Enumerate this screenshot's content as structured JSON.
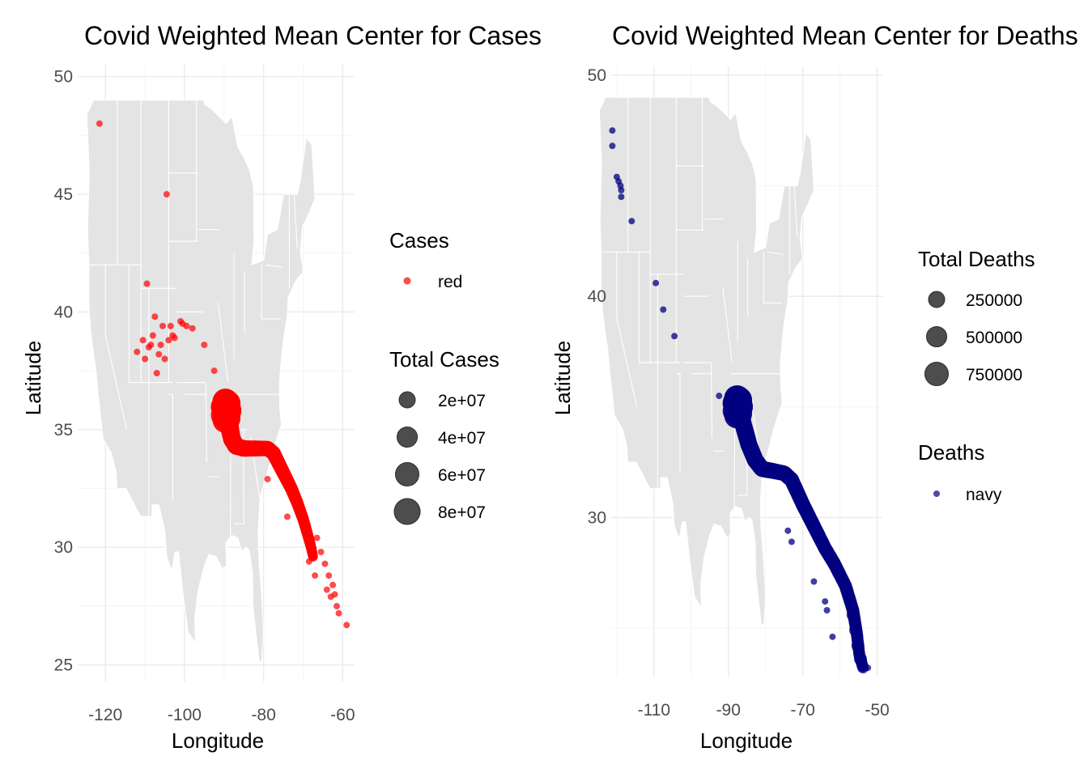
{
  "chart_data": [
    {
      "type": "scatter",
      "title": "Covid Weighted Mean Center for Cases",
      "xlabel": "Longitude",
      "ylabel": "Latitude",
      "xlim": [
        -127,
        -57
      ],
      "ylim": [
        24.3,
        50.5
      ],
      "xticks": [
        -120,
        -100,
        -80,
        -60
      ],
      "yticks": [
        25,
        30,
        35,
        40,
        45,
        50
      ],
      "xtick_labels": [
        "-120",
        "-100",
        "-80",
        "-60"
      ],
      "ytick_labels": [
        "25",
        "30",
        "35",
        "40",
        "45",
        "50"
      ],
      "grid": true,
      "basemap": "contiguous US states (light gray)",
      "point_color": "#ff0000",
      "legends": [
        {
          "title": "Cases",
          "entries": [
            {
              "label": "red",
              "color": "#ff0000"
            }
          ]
        },
        {
          "title": "Total Cases",
          "entries": [
            {
              "label": "2e+07",
              "value": 20000000
            },
            {
              "label": "4e+07",
              "value": 40000000
            },
            {
              "label": "6e+07",
              "value": 60000000
            },
            {
              "label": "8e+07",
              "value": 80000000
            }
          ]
        }
      ],
      "scattered_points": [
        [
          -121.5,
          48.0
        ],
        [
          -104.5,
          45.0
        ],
        [
          -109.5,
          41.2
        ],
        [
          -112.0,
          38.3
        ],
        [
          -110.5,
          38.8
        ],
        [
          -109.0,
          38.5
        ],
        [
          -108.0,
          39.0
        ],
        [
          -107.5,
          39.8
        ],
        [
          -106.5,
          38.2
        ],
        [
          -105.5,
          39.4
        ],
        [
          -104.0,
          38.8
        ],
        [
          -103.5,
          39.4
        ],
        [
          -101.0,
          39.6
        ],
        [
          -99.5,
          39.4
        ],
        [
          -100.5,
          39.5
        ],
        [
          -102.5,
          38.9
        ],
        [
          -110.0,
          38.0
        ],
        [
          -108.5,
          38.6
        ],
        [
          -107.0,
          37.4
        ],
        [
          -106.0,
          38.6
        ],
        [
          -105.0,
          38.0
        ],
        [
          -103.0,
          39.0
        ],
        [
          -98.0,
          39.3
        ],
        [
          -95.0,
          38.6
        ],
        [
          -92.5,
          37.5
        ],
        [
          -79.0,
          32.9
        ],
        [
          -74.0,
          31.3
        ],
        [
          -66.5,
          30.4
        ],
        [
          -65.5,
          29.8
        ],
        [
          -64.5,
          29.3
        ],
        [
          -63.5,
          28.8
        ],
        [
          -62.5,
          28.4
        ],
        [
          -62.0,
          28.0
        ],
        [
          -61.5,
          27.5
        ],
        [
          -61.0,
          27.2
        ],
        [
          -59.0,
          26.7
        ],
        [
          -68.5,
          29.4
        ],
        [
          -67.0,
          28.8
        ],
        [
          -64.0,
          28.2
        ],
        [
          -63.0,
          27.9
        ]
      ],
      "path": [
        [
          -90.0,
          36.0
        ],
        [
          -89.0,
          35.5
        ],
        [
          -88.5,
          35.0
        ],
        [
          -88.0,
          34.6
        ],
        [
          -87.0,
          34.3
        ],
        [
          -85.0,
          34.2
        ],
        [
          -82.0,
          34.2
        ],
        [
          -79.0,
          34.2
        ],
        [
          -77.5,
          34.0
        ],
        [
          -76.0,
          33.5
        ],
        [
          -74.5,
          33.0
        ],
        [
          -73.0,
          32.5
        ],
        [
          -71.5,
          31.9
        ],
        [
          -70.0,
          31.2
        ],
        [
          -68.8,
          30.5
        ],
        [
          -68.0,
          30.0
        ],
        [
          -67.5,
          29.6
        ]
      ],
      "cluster": [
        -89.5,
        35.8
      ]
    },
    {
      "type": "scatter",
      "title": "Covid Weighted Mean Center for Deaths",
      "xlabel": "Longitude",
      "ylabel": "Latitude",
      "xlim": [
        -121.5,
        -48.6
      ],
      "ylim": [
        22.8,
        50.4
      ],
      "xticks": [
        -110,
        -90,
        -70,
        -50
      ],
      "yticks": [
        30,
        40,
        50
      ],
      "xtick_labels": [
        "-110",
        "-90",
        "-70",
        "-50"
      ],
      "ytick_labels": [
        "30",
        "40",
        "50"
      ],
      "grid": true,
      "basemap": "contiguous US states (light gray)",
      "point_color": "#000080",
      "legends": [
        {
          "title": "Total Deaths",
          "entries": [
            {
              "label": "250000",
              "value": 250000
            },
            {
              "label": "500000",
              "value": 500000
            },
            {
              "label": "750000",
              "value": 750000
            }
          ]
        },
        {
          "title": "Deaths",
          "entries": [
            {
              "label": "navy",
              "color": "#000080"
            }
          ]
        }
      ],
      "scattered_points": [
        [
          -121.2,
          47.5
        ],
        [
          -121.2,
          46.8
        ],
        [
          -120.0,
          45.4
        ],
        [
          -119.5,
          45.2
        ],
        [
          -119.0,
          45.0
        ],
        [
          -118.8,
          44.8
        ],
        [
          -118.8,
          44.5
        ],
        [
          -116.0,
          43.4
        ],
        [
          -109.5,
          40.6
        ],
        [
          -107.5,
          39.4
        ],
        [
          -104.5,
          38.2
        ],
        [
          -92.5,
          35.5
        ],
        [
          -82.5,
          32.9
        ],
        [
          -80.5,
          32.1
        ],
        [
          -74.0,
          29.4
        ],
        [
          -73.0,
          28.9
        ],
        [
          -67.0,
          27.1
        ],
        [
          -64.0,
          26.2
        ],
        [
          -63.5,
          25.8
        ],
        [
          -62.0,
          24.6
        ],
        [
          -57.0,
          25.5
        ],
        [
          -54.5,
          23.8
        ],
        [
          -54.0,
          23.3
        ],
        [
          -52.5,
          23.2
        ]
      ],
      "path": [
        [
          -87.5,
          35.2
        ],
        [
          -86.0,
          34.2
        ],
        [
          -84.5,
          33.3
        ],
        [
          -82.8,
          32.6
        ],
        [
          -81.0,
          32.2
        ],
        [
          -78.0,
          32.1
        ],
        [
          -75.0,
          32.0
        ],
        [
          -73.0,
          31.7
        ],
        [
          -70.0,
          30.6
        ],
        [
          -67.0,
          29.6
        ],
        [
          -64.0,
          28.6
        ],
        [
          -61.5,
          27.9
        ],
        [
          -58.5,
          26.9
        ],
        [
          -56.5,
          25.8
        ],
        [
          -55.5,
          24.8
        ],
        [
          -54.8,
          23.8
        ],
        [
          -53.8,
          23.2
        ]
      ],
      "cluster": [
        -87.5,
        35.0
      ]
    }
  ]
}
